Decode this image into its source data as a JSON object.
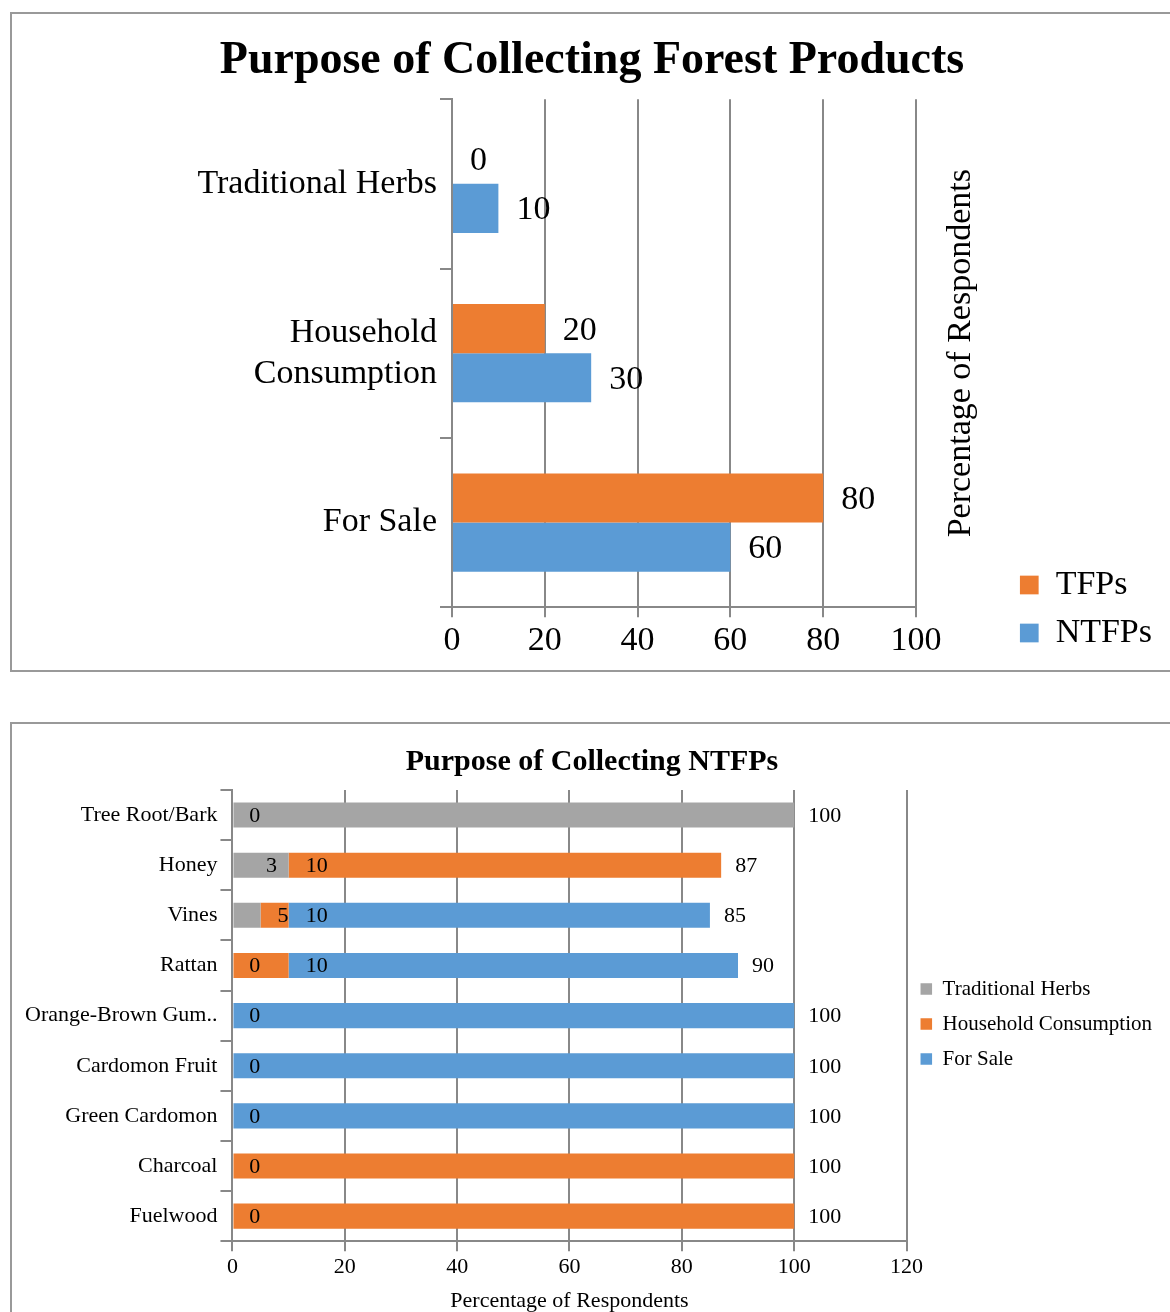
{
  "chart_data": [
    {
      "type": "bar",
      "orientation": "horizontal",
      "title": "Purpose of Collecting Forest Products",
      "y2label": "Percentage of Respondents",
      "categories": [
        "Traditional Herbs",
        "Household Consumption",
        "For Sale"
      ],
      "series": [
        {
          "name": "TFPs",
          "color": "#ed7d31",
          "values": [
            0,
            20,
            80
          ]
        },
        {
          "name": "NTFPs",
          "color": "#5b9bd5",
          "values": [
            10,
            30,
            60
          ]
        }
      ],
      "xlim": [
        0,
        100
      ],
      "xticks": [
        0,
        20,
        40,
        60,
        80,
        100
      ],
      "grid": "x",
      "legend": "bottom right",
      "data_labels": true
    },
    {
      "type": "bar",
      "orientation": "horizontal",
      "stacked": true,
      "title": "Purpose of Collecting NTFPs",
      "xlabel": "Percentage of Respondents",
      "categories": [
        "Tree Root/Bark",
        "Honey",
        "Vines",
        "Rattan",
        "Orange-Brown Gum..",
        "Cardomon Fruit",
        "Green Cardomon",
        "Charcoal",
        "Fuelwood"
      ],
      "series": [
        {
          "name": "Traditional Herbs",
          "color": "#a5a5a5",
          "values": [
            100,
            10,
            5,
            0,
            0,
            0,
            0,
            0,
            0
          ]
        },
        {
          "name": "Household Consumption",
          "color": "#ed7d31",
          "values": [
            0,
            77,
            5,
            10,
            0,
            0,
            0,
            100,
            100
          ]
        },
        {
          "name": "For Sale",
          "color": "#5b9bd5",
          "values": [
            0,
            0,
            75,
            80,
            100,
            100,
            100,
            0,
            0
          ]
        }
      ],
      "annotations": [
        "0",
        "3",
        "10",
        "5",
        "10",
        "0",
        "10",
        "0",
        "0",
        "0",
        "0",
        "0"
      ],
      "totals": [
        "100",
        "87",
        "85",
        "90",
        "100",
        "100",
        "100",
        "100",
        "100"
      ],
      "xlim": [
        0,
        120
      ],
      "xticks": [
        0,
        20,
        40,
        60,
        80,
        100,
        120
      ],
      "grid": "x",
      "legend": "right"
    }
  ]
}
